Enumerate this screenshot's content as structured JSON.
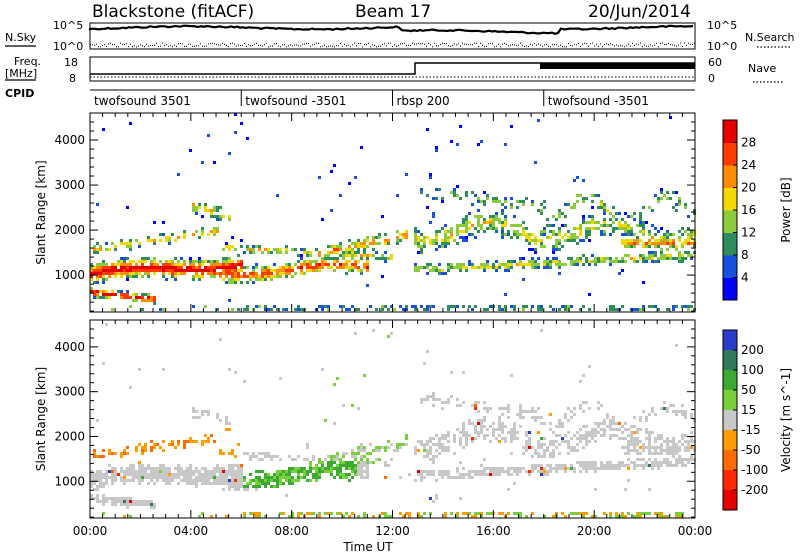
{
  "header": {
    "station": "Blackstone (fitACF)",
    "beam": "Beam 17",
    "date": "20/Jun/2014"
  },
  "side_labels": {
    "nsky": "N.Sky",
    "nsearch": "N.Search",
    "freq_line1": "Freq.",
    "freq_line2": "[MHz]",
    "nave": "Nave",
    "cpid": "CPID"
  },
  "noise_axis": {
    "left_ticks": [
      "10^5",
      "10^0"
    ],
    "right_ticks": [
      "10^5",
      "10^0"
    ]
  },
  "freq_axis": {
    "left_ticks": [
      "18",
      "8"
    ],
    "right_ticks": [
      "60",
      "0"
    ]
  },
  "cpid_segments": [
    {
      "label": "twofsound 3501",
      "start": 0
    },
    {
      "label": "twofsound -3501",
      "start": 6
    },
    {
      "label": "rbsp 200",
      "start": 12
    },
    {
      "label": "twofsound -3501",
      "start": 18
    }
  ],
  "chart_data": [
    {
      "type": "heatmap",
      "xlabel": "",
      "ylabel": "Slant Range [km]",
      "xlim": [
        0,
        24
      ],
      "ylim": [
        180,
        4600
      ],
      "y_ticks": [
        1000,
        2000,
        3000,
        4000
      ],
      "colorbar": {
        "label": "Power [dB]",
        "ticks": [
          "4",
          "8",
          "12",
          "16",
          "20",
          "24",
          "28"
        ],
        "colors": [
          "#0000ff",
          "#1850e0",
          "#2f8c5c",
          "#8ccc3c",
          "#f5d800",
          "#ff8c00",
          "#ff3c00",
          "#e60000"
        ]
      }
    },
    {
      "type": "heatmap",
      "xlabel": "Time UT",
      "ylabel": "Slant Range [km]",
      "xlim": [
        0,
        24
      ],
      "ylim": [
        180,
        4600
      ],
      "x_ticks": [
        "00:00",
        "04:00",
        "08:00",
        "12:00",
        "16:00",
        "20:00",
        "00:00"
      ],
      "y_ticks": [
        1000,
        2000,
        3000,
        4000
      ],
      "colorbar": {
        "label": "Velocity [m s^-1]",
        "ticks": [
          "200",
          "100",
          "50",
          "15",
          "-15",
          "-50",
          "-100",
          "-200"
        ],
        "colors": [
          "#2a3ccc",
          "#2f7a5c",
          "#3caa32",
          "#78d03c",
          "#c8c8c8",
          "#ff9c00",
          "#ff6a00",
          "#ff2800",
          "#e60000"
        ]
      }
    }
  ]
}
